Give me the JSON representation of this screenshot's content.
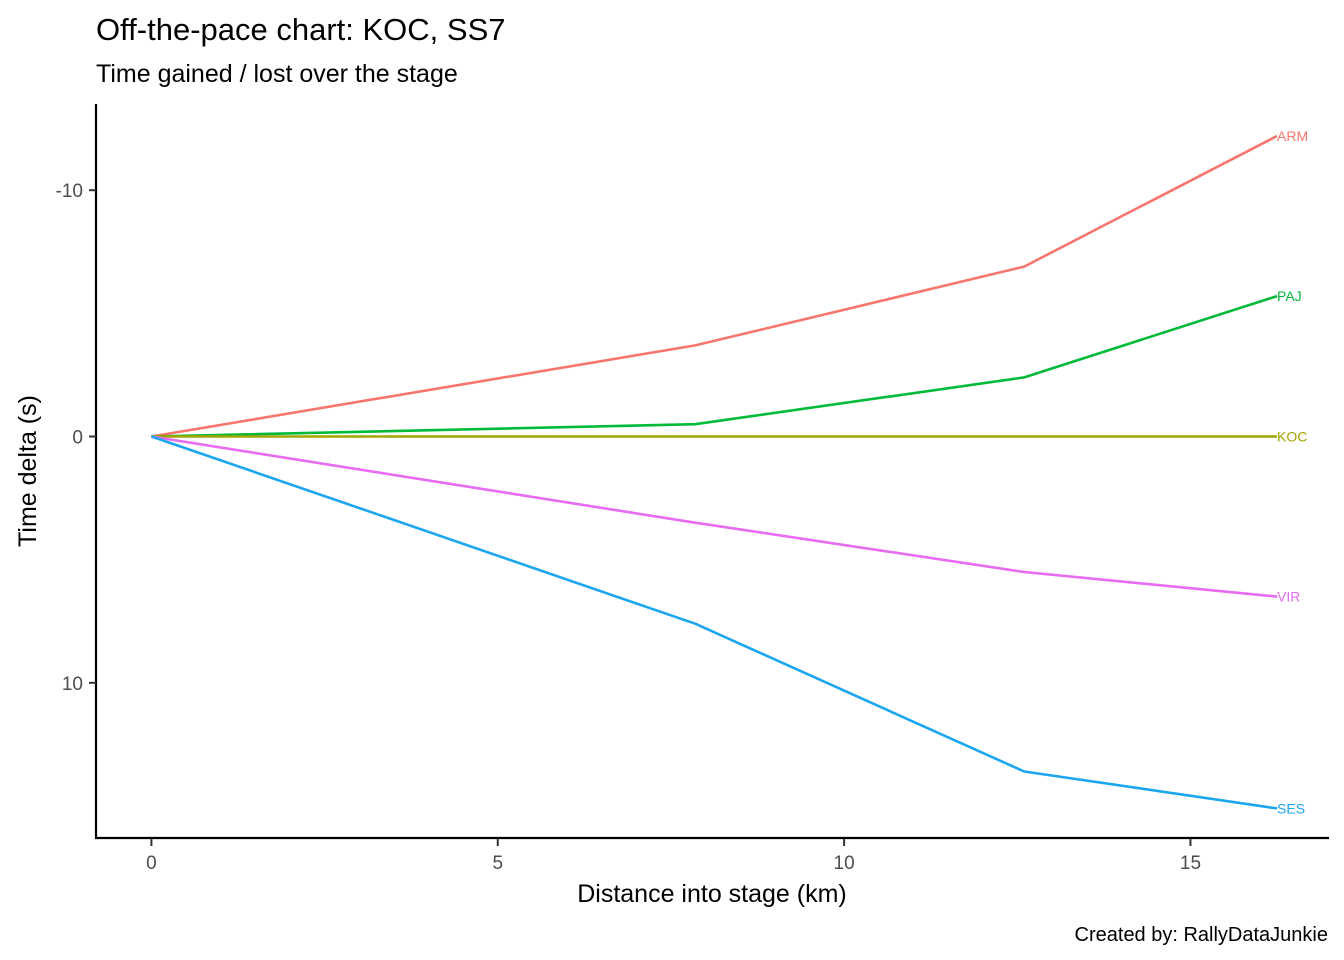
{
  "chart_data": {
    "type": "line",
    "title": "Off-the-pace chart: KOC, SS7",
    "subtitle": "Time gained / lost over the stage",
    "xlabel": "Distance into stage (km)",
    "ylabel": "Time delta (s)",
    "caption": "Created by: RallyDataJunkie",
    "xlim": [
      -0.8,
      17.0
    ],
    "ylim": [
      16.3,
      -13.5
    ],
    "y_reversed": true,
    "x_ticks": [
      0,
      5,
      10,
      15
    ],
    "x_tick_labels": [
      "0",
      "5",
      "10",
      "15"
    ],
    "y_ticks": [
      -10,
      0,
      10
    ],
    "y_tick_labels": [
      "-10",
      "0",
      "10"
    ],
    "grid": false,
    "legend": "none (direct end labels)",
    "x": [
      0,
      7.85,
      12.6,
      16.25
    ],
    "series": [
      {
        "name": "ARM",
        "color": "#F8766D",
        "values": [
          0,
          -3.7,
          -6.9,
          -12.2
        ]
      },
      {
        "name": "PAJ",
        "color": "#00BA38",
        "values": [
          0,
          -0.5,
          -2.4,
          -5.7
        ]
      },
      {
        "name": "KOC",
        "color": "#A3A500",
        "values": [
          0,
          0,
          0,
          0
        ]
      },
      {
        "name": "VIR",
        "color": "#E76BF3",
        "values": [
          0,
          3.5,
          5.5,
          6.5
        ]
      },
      {
        "name": "SES",
        "color": "#1CA6F0",
        "values": [
          0,
          7.6,
          13.6,
          15.1
        ]
      }
    ]
  }
}
